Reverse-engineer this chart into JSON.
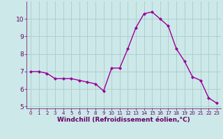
{
  "x": [
    0,
    1,
    2,
    3,
    4,
    5,
    6,
    7,
    8,
    9,
    10,
    11,
    12,
    13,
    14,
    15,
    16,
    17,
    18,
    19,
    20,
    21,
    22,
    23
  ],
  "y": [
    7.0,
    7.0,
    6.9,
    6.6,
    6.6,
    6.6,
    6.5,
    6.4,
    6.3,
    5.9,
    7.2,
    7.2,
    8.3,
    9.5,
    10.3,
    10.4,
    10.0,
    9.6,
    8.3,
    7.6,
    6.7,
    6.5,
    5.5,
    5.2
  ],
  "line_color": "#990099",
  "marker": "D",
  "marker_size": 2.0,
  "linewidth": 1.0,
  "background_color": "#cce8e8",
  "grid_color": "#aacccc",
  "xlabel": "Windchill (Refroidissement éolien,°C)",
  "xlabel_fontsize": 6.5,
  "xlabel_color": "#660066",
  "tick_color": "#660066",
  "ylim": [
    4.9,
    11.0
  ],
  "xlim": [
    -0.5,
    23.5
  ],
  "yticks": [
    5,
    6,
    7,
    8,
    9,
    10
  ],
  "xticks": [
    0,
    1,
    2,
    3,
    4,
    5,
    6,
    7,
    8,
    9,
    10,
    11,
    12,
    13,
    14,
    15,
    16,
    17,
    18,
    19,
    20,
    21,
    22,
    23
  ],
  "tick_fontsize_x": 5.0,
  "tick_fontsize_y": 6.5
}
